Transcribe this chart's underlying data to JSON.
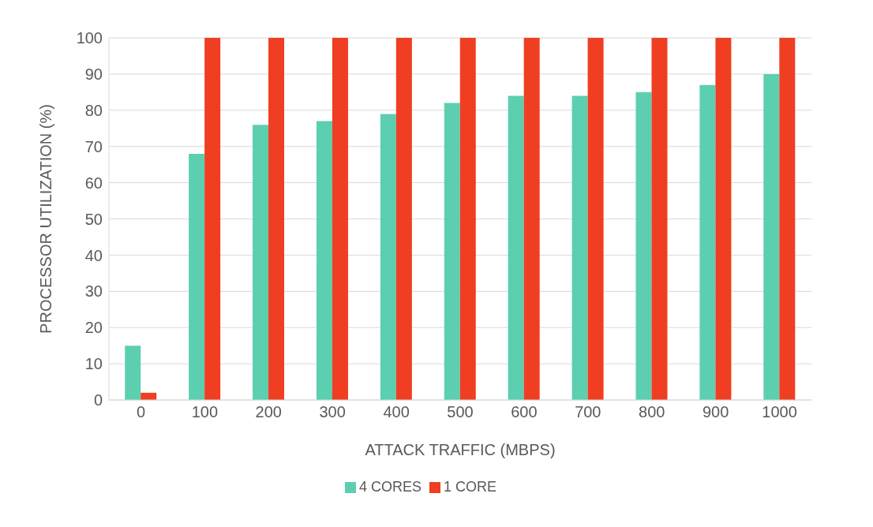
{
  "chart_data": {
    "type": "bar",
    "xlabel": "ATTACK TRAFFIC (MBPS)",
    "ylabel": "PROCESSOR UTILIZATION (%)",
    "categories": [
      "0",
      "100",
      "200",
      "300",
      "400",
      "500",
      "600",
      "700",
      "800",
      "900",
      "1000"
    ],
    "series": [
      {
        "name": "4 CORES",
        "color": "#5ccfb0",
        "values": [
          15,
          68,
          76,
          77,
          79,
          82,
          84,
          84,
          85,
          87,
          90
        ]
      },
      {
        "name": "1 CORE",
        "color": "#ef3e22",
        "values": [
          2,
          100,
          100,
          100,
          100,
          100,
          100,
          100,
          100,
          100,
          100
        ]
      }
    ],
    "ylim": [
      0,
      100
    ],
    "yticks": [
      0,
      10,
      20,
      30,
      40,
      50,
      60,
      70,
      80,
      90,
      100
    ],
    "grid": "y",
    "legend": "bottom"
  }
}
